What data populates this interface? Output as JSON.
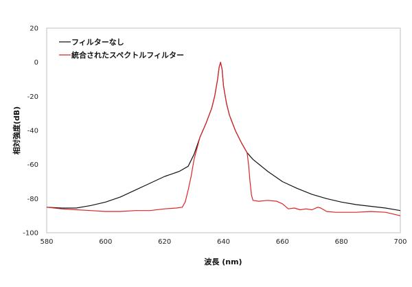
{
  "chart_data": {
    "type": "line",
    "xlabel": "波長 (nm)",
    "ylabel": "相対強度(dB)",
    "xlim": [
      580,
      700
    ],
    "ylim": [
      -100,
      20
    ],
    "xticks": [
      580,
      600,
      620,
      640,
      660,
      680,
      700
    ],
    "yticks": [
      20,
      0,
      -20,
      -40,
      -60,
      -80,
      -100
    ],
    "grid": false,
    "legend": "top-left",
    "series": [
      {
        "name": "フィルターなし",
        "color": "#111111",
        "x": [
          580,
          585,
          590,
          595,
          600,
          605,
          610,
          615,
          620,
          625,
          628,
          630,
          632,
          634,
          636,
          637,
          638,
          638.5,
          639,
          639.5,
          640,
          641,
          642,
          644,
          646,
          648,
          650,
          655,
          660,
          665,
          670,
          675,
          680,
          685,
          690,
          695,
          700
        ],
        "y": [
          -85,
          -85.5,
          -85.5,
          -84,
          -82,
          -79,
          -75,
          -71,
          -67,
          -64,
          -61,
          -54,
          -44,
          -36,
          -27,
          -20,
          -10,
          -3,
          0,
          -4,
          -14,
          -24,
          -31,
          -40,
          -47,
          -53,
          -57,
          -64,
          -70,
          -74,
          -77.5,
          -80,
          -82,
          -83.5,
          -84.5,
          -85.5,
          -87
        ]
      },
      {
        "name": "統合されたスペクトルフィルター",
        "color": "#dd2222",
        "x": [
          580,
          585,
          590,
          595,
          600,
          605,
          610,
          615,
          620,
          624,
          626,
          627,
          628,
          629,
          630,
          632,
          634,
          636,
          637,
          638,
          638.5,
          639,
          639.5,
          640,
          641,
          642,
          644,
          646,
          648,
          648.5,
          649,
          649.5,
          650,
          652,
          655,
          658,
          660,
          662,
          664,
          666,
          668,
          670,
          672,
          673,
          675,
          678,
          680,
          685,
          690,
          695,
          700
        ],
        "y": [
          -85,
          -86,
          -86.5,
          -87,
          -87.5,
          -87.5,
          -87,
          -87,
          -86,
          -85.5,
          -85,
          -82,
          -75,
          -67,
          -57,
          -44,
          -36,
          -27,
          -20,
          -10,
          -3,
          0,
          -4,
          -14,
          -24,
          -31,
          -40,
          -47,
          -53,
          -60,
          -70,
          -78,
          -81,
          -81.5,
          -81,
          -81.5,
          -83,
          -86,
          -85.5,
          -86.5,
          -86,
          -86.5,
          -85,
          -85.5,
          -87.5,
          -88,
          -88,
          -88,
          -87.5,
          -88,
          -90
        ]
      }
    ]
  }
}
